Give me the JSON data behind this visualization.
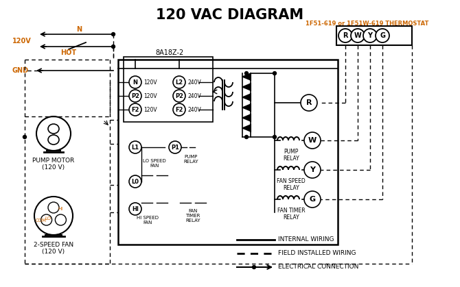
{
  "title": "120 VAC DIAGRAM",
  "title_color": "#000000",
  "thermostat_label": "1F51-619 or 1F51W-619 THERMOSTAT",
  "orange_color": "#cc6600",
  "box_label": "8A18Z-2",
  "bg_color": "#ffffff",
  "line_color": "#000000",
  "thermostat_terminals": [
    "R",
    "W",
    "Y",
    "G"
  ],
  "left_terms": [
    [
      "N",
      120
    ],
    [
      "P2",
      140
    ],
    [
      "F2",
      160
    ]
  ],
  "right_terms": [
    [
      "L2",
      120
    ],
    [
      "P2",
      140
    ],
    [
      "F2",
      160
    ]
  ],
  "relay_terms": [
    [
      "R",
      155
    ],
    [
      "W",
      205
    ],
    [
      "Y",
      250
    ],
    [
      "G",
      295
    ]
  ],
  "relay_labels_right": [
    "PUMP\nRELAY",
    "FAN SPEED\nRELAY",
    "FAN TIMER\nRELAY"
  ],
  "legend": [
    {
      "label": "INTERNAL WIRING",
      "style": "solid"
    },
    {
      "label": "FIELD INSTALLED WIRING",
      "style": "thick_solid"
    },
    {
      "label": "ELECTRICAL CONNECTION",
      "style": "arrow"
    }
  ]
}
